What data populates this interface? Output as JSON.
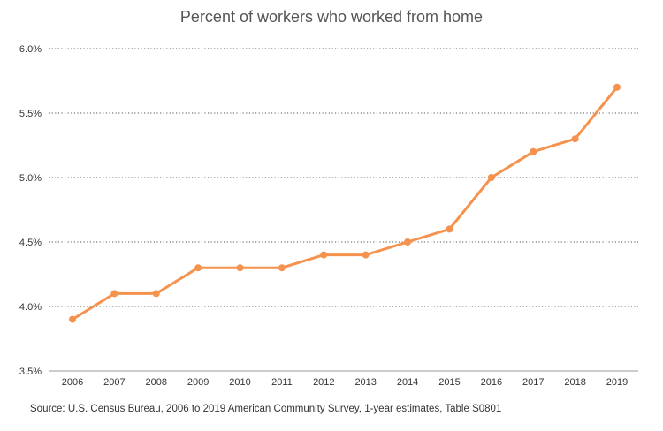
{
  "chart_data": {
    "type": "line",
    "title": "Percent of workers who worked from home",
    "source": "Source: U.S. Census Bureau, 2006 to 2019 American Community Survey, 1-year estimates, Table S0801",
    "xlabel": "",
    "ylabel": "",
    "categories": [
      "2006",
      "2007",
      "2008",
      "2009",
      "2010",
      "2011",
      "2012",
      "2013",
      "2014",
      "2015",
      "2016",
      "2017",
      "2018",
      "2019"
    ],
    "values": [
      3.9,
      4.1,
      4.1,
      4.3,
      4.3,
      4.3,
      4.4,
      4.4,
      4.5,
      4.6,
      5.0,
      5.2,
      5.3,
      5.7
    ],
    "ylim": [
      3.5,
      6.0
    ],
    "yticks": [
      "3.5%",
      "4.0%",
      "4.5%",
      "5.0%",
      "5.5%",
      "6.0%"
    ],
    "ytick_values": [
      3.5,
      4.0,
      4.5,
      5.0,
      5.5,
      6.0
    ],
    "grid": true,
    "colors": {
      "line": "#F4924E",
      "grid": "#555555",
      "axis": "#999999"
    }
  }
}
